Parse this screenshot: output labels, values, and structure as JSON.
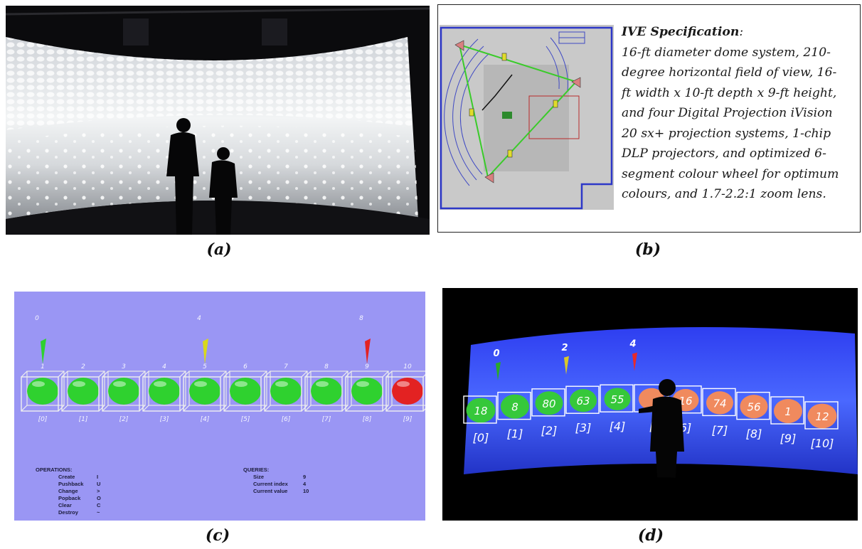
{
  "captions": {
    "a": "(a)",
    "b": "(b)",
    "c": "(c)",
    "d": "(d)"
  },
  "spec": {
    "title": "IVE Specification",
    "title_colon": ":",
    "lines": [
      "16-ft diameter dome system, 210-",
      "degree horizontal field of view, 16-",
      "ft width x 10-ft depth x 9-ft height,",
      "and four Digital Projection iVision",
      "20 sx+ projection systems, 1-chip",
      "DLP projectors, and optimized 6-",
      "segment colour wheel for optimum",
      "colours, and 1.7-2.2:1 zoom lens."
    ]
  },
  "panel_c": {
    "pointer_labels": [
      "0",
      "4",
      "8"
    ],
    "top_numbers": [
      "1",
      "2",
      "3",
      "4",
      "5",
      "6",
      "7",
      "8",
      "9",
      "10"
    ],
    "bottom_indices": [
      "[0]",
      "[1]",
      "[2]",
      "[3]",
      "[4]",
      "[5]",
      "[6]",
      "[7]",
      "[8]",
      "[9]"
    ],
    "operations_title": "OPERATIONS:",
    "operations": [
      {
        "name": "Create",
        "key": "I"
      },
      {
        "name": "Pushback",
        "key": "U"
      },
      {
        "name": "Change",
        "key": ">"
      },
      {
        "name": "Popback",
        "key": "O"
      },
      {
        "name": "Clear",
        "key": "C"
      },
      {
        "name": "Destroy",
        "key": "~"
      }
    ],
    "queries_title": "QUERIES:",
    "queries": [
      {
        "name": "Size",
        "value": "9"
      },
      {
        "name": "Current index",
        "value": "4"
      },
      {
        "name": "Current value",
        "value": "10"
      }
    ],
    "colors": {
      "background": "#9a96f4",
      "green": "#2fd12f",
      "red": "#e32222",
      "yellow": "#d8d81c"
    }
  },
  "panel_d": {
    "pointer_labels": [
      "0",
      "2",
      "4"
    ],
    "ball_values": [
      "18",
      "8",
      "80",
      "63",
      "55",
      "",
      "16",
      "74",
      "56",
      "1",
      "12"
    ],
    "indices": [
      "[0]",
      "[1]",
      "[2]",
      "[3]",
      "[4]",
      "[",
      "6]",
      "[7]",
      "[8]",
      "[9]",
      "[10]"
    ]
  }
}
